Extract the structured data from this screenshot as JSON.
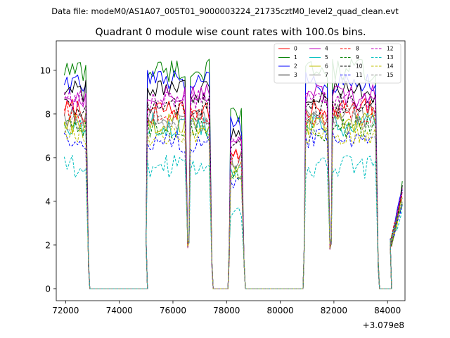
{
  "chart_data": {
    "type": "line",
    "suptitle": "Data file: modeM0/AS1A07_005T01_9000003224_21735cztM0_level2_quad_clean.evt",
    "title": "Quadrant 0 module wise count rates with 100.0s bins.",
    "xlabel": "",
    "ylabel": "",
    "x_offset_label": "+3.079e8",
    "xlim": [
      71650,
      84650
    ],
    "ylim": [
      -0.55,
      11.35
    ],
    "x_ticks": [
      72000,
      74000,
      76000,
      78000,
      80000,
      82000,
      84000
    ],
    "y_ticks": [
      0,
      2,
      4,
      6,
      8,
      10
    ],
    "legend_position": "top-right",
    "legend_columns": 4,
    "segments": [
      {
        "x_start": 71950,
        "x_end": 72750
      },
      {
        "x_start": 75050,
        "x_end": 76450
      },
      {
        "x_start": 76650,
        "x_end": 77350
      },
      {
        "x_start": 78150,
        "x_end": 78550
      },
      {
        "x_start": 80950,
        "x_end": 81750
      },
      {
        "x_start": 81950,
        "x_end": 83550
      },
      {
        "x_start": 84150,
        "x_end": 84550
      }
    ],
    "zero_intervals": [
      [
        72950,
        75050
      ],
      [
        77550,
        78050
      ],
      [
        78750,
        80850
      ],
      [
        83750,
        84150
      ]
    ],
    "series": [
      {
        "name": "0",
        "color": "#ff0000",
        "dash": "solid",
        "level": 8.2
      },
      {
        "name": "1",
        "color": "#008000",
        "dash": "solid",
        "level": 10.0
      },
      {
        "name": "2",
        "color": "#0000ff",
        "dash": "solid",
        "level": 9.5
      },
      {
        "name": "3",
        "color": "#000000",
        "dash": "solid",
        "level": 9.0
      },
      {
        "name": "4",
        "color": "#bf00bf",
        "dash": "solid",
        "level": 8.8
      },
      {
        "name": "5",
        "color": "#00bfbf",
        "dash": "solid",
        "level": 7.5
      },
      {
        "name": "6",
        "color": "#bfbf00",
        "dash": "solid",
        "level": 7.6
      },
      {
        "name": "7",
        "color": "#808080",
        "dash": "solid",
        "level": 7.9
      },
      {
        "name": "8",
        "color": "#ff0000",
        "dash": "dashed",
        "level": 8.0
      },
      {
        "name": "9",
        "color": "#008000",
        "dash": "dashed",
        "level": 7.3
      },
      {
        "name": "10",
        "color": "#000000",
        "dash": "dashed",
        "level": 8.4
      },
      {
        "name": "11",
        "color": "#0000ff",
        "dash": "dashed",
        "level": 6.8
      },
      {
        "name": "12",
        "color": "#bf00bf",
        "dash": "dashed",
        "level": 8.6
      },
      {
        "name": "13",
        "color": "#00bfbf",
        "dash": "dashed",
        "level": 5.6
      },
      {
        "name": "14",
        "color": "#bfbf00",
        "dash": "dashed",
        "level": 7.1
      },
      {
        "name": "15",
        "color": "#808080",
        "dash": "dashed",
        "level": 7.7
      }
    ]
  }
}
